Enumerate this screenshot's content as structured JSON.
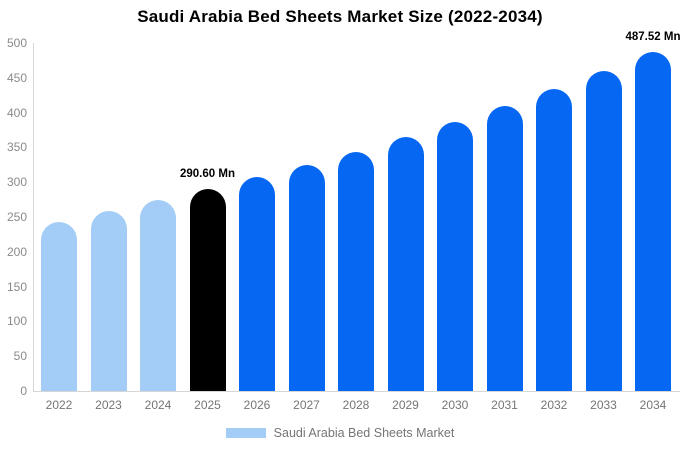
{
  "title": "Saudi Arabia Bed Sheets Market Size (2022-2034)",
  "legend": {
    "label": "Saudi Arabia Bed Sheets Market"
  },
  "colors": {
    "historical": "#A3CDF7",
    "highlight": "#000000",
    "forecast": "#0667F2",
    "axis_text": "#757575",
    "axis_line": "#D6D6D6",
    "background": "#FFFFFF"
  },
  "chart_data": {
    "type": "bar",
    "title": "Saudi Arabia Bed Sheets Market Size (2022-2034)",
    "categories": [
      "2022",
      "2023",
      "2024",
      "2025",
      "2026",
      "2027",
      "2028",
      "2029",
      "2030",
      "2031",
      "2032",
      "2033",
      "2034"
    ],
    "values": [
      243,
      258,
      274,
      290.6,
      307,
      325,
      344,
      365,
      387,
      410,
      434,
      460,
      487.52
    ],
    "unit": "Mn",
    "bar_color_roles": [
      "historical",
      "historical",
      "historical",
      "highlight",
      "forecast",
      "forecast",
      "forecast",
      "forecast",
      "forecast",
      "forecast",
      "forecast",
      "forecast",
      "forecast"
    ],
    "annotations": [
      {
        "category": "2025",
        "text": "290.60 Mn"
      },
      {
        "category": "2034",
        "text": "487.52 Mn"
      }
    ],
    "xlabel": "",
    "ylabel": "",
    "ylim": [
      0,
      500
    ],
    "ytick_step": 50,
    "grid": false,
    "legend_position": "bottom",
    "legend_items": [
      {
        "label": "Saudi Arabia Bed Sheets Market",
        "color_role": "historical"
      }
    ]
  }
}
